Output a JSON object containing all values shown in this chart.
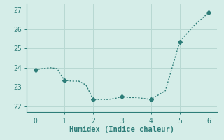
{
  "x": [
    0,
    0.25,
    0.5,
    0.75,
    1.0,
    1.25,
    1.5,
    1.75,
    2.0,
    2.25,
    2.5,
    2.75,
    3.0,
    3.25,
    3.5,
    3.75,
    4.0,
    4.5,
    5.0,
    5.5,
    6.0
  ],
  "y": [
    23.9,
    23.95,
    24.0,
    23.95,
    23.35,
    23.3,
    23.3,
    23.1,
    22.35,
    22.35,
    22.35,
    22.4,
    22.5,
    22.45,
    22.45,
    22.4,
    22.35,
    22.8,
    25.35,
    26.2,
    26.85
  ],
  "markers_x": [
    0,
    1,
    2,
    3,
    4,
    5,
    6
  ],
  "markers_y": [
    23.9,
    23.35,
    22.35,
    22.5,
    22.35,
    25.35,
    26.85
  ],
  "line_color": "#2d7d78",
  "marker_color": "#2d7d78",
  "bg_color": "#d5ede8",
  "grid_color": "#b8d8d2",
  "axis_color": "#2d7d78",
  "xlabel": "Humidex (Indice chaleur)",
  "xlim": [
    -0.3,
    6.3
  ],
  "ylim": [
    21.7,
    27.3
  ],
  "xticks": [
    0,
    1,
    2,
    3,
    4,
    5,
    6
  ],
  "yticks": [
    22,
    23,
    24,
    25,
    26,
    27
  ],
  "label_fontsize": 7.5,
  "tick_fontsize": 7
}
